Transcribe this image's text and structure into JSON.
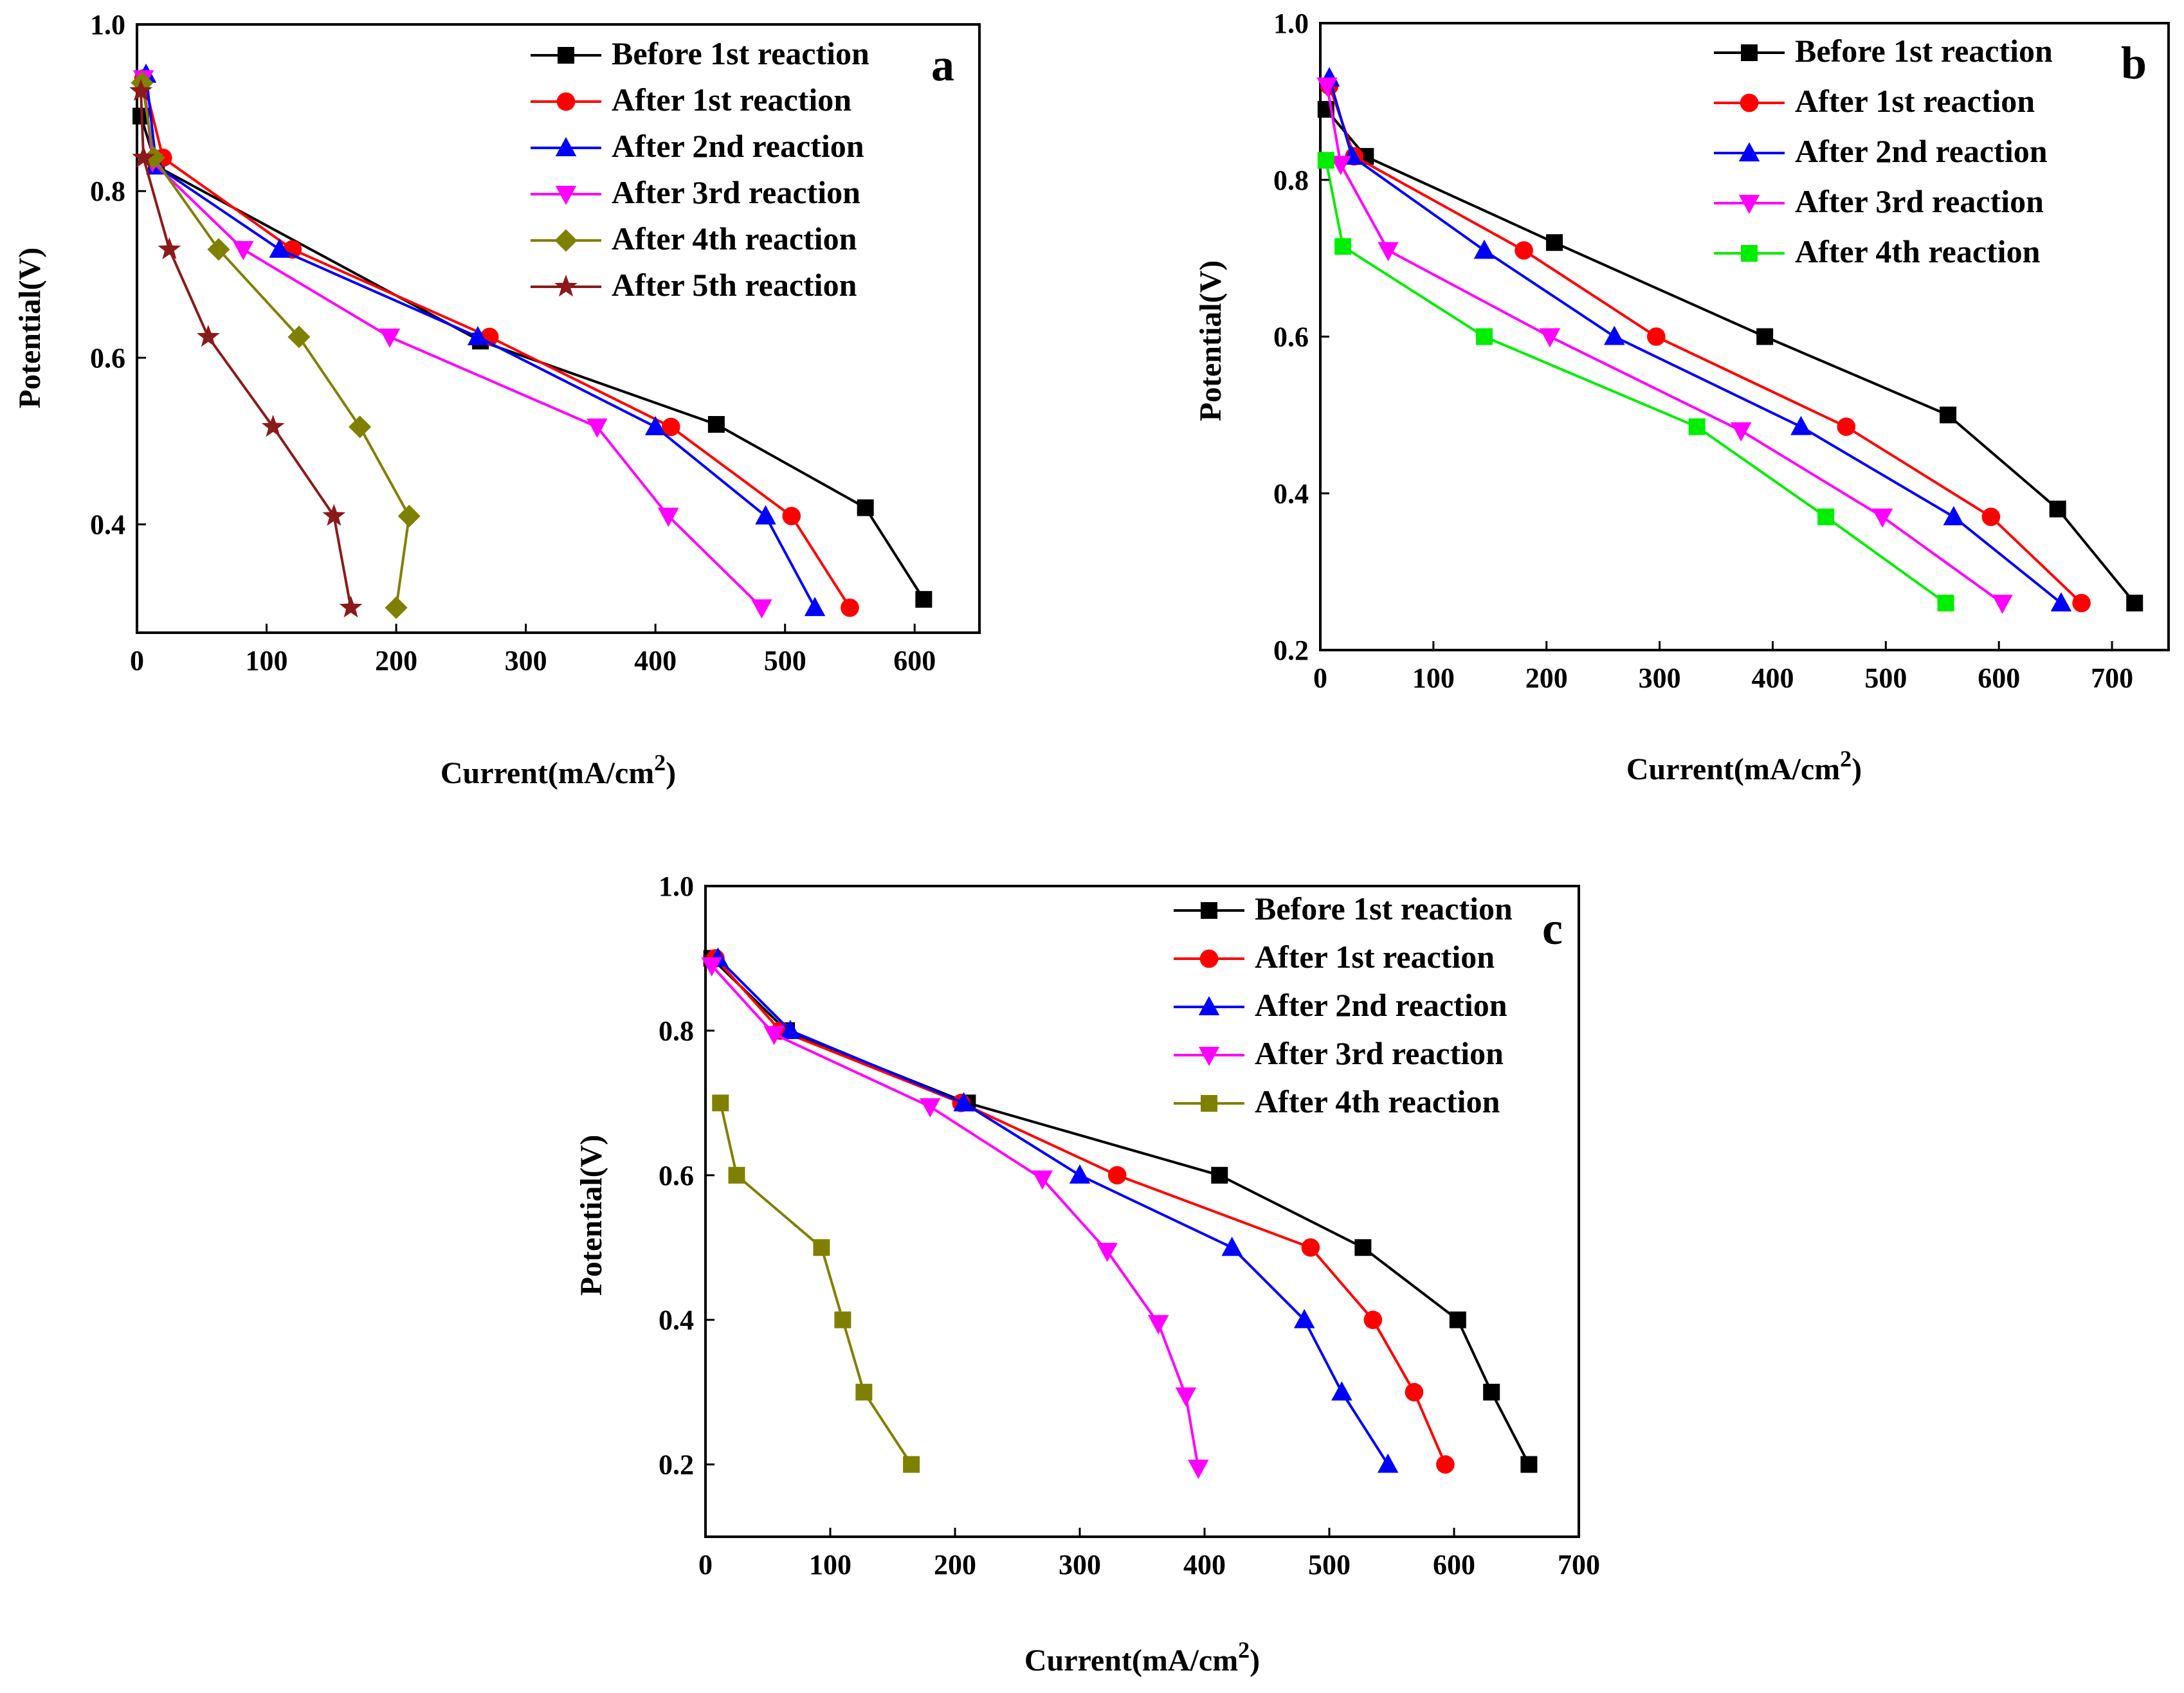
{
  "chart_data": [
    {
      "panel": "a",
      "type": "line",
      "xlabel": "Current(mA/cm",
      "xlabel_sup": "2",
      "xlabel_close": ")",
      "ylabel": "Potential(V)",
      "xlim": [
        0,
        650
      ],
      "ylim": [
        0.27,
        1.0
      ],
      "xticks": [
        0,
        100,
        200,
        300,
        400,
        500,
        600
      ],
      "xtick_labels": [
        "0",
        "100",
        "200",
        "300",
        "400",
        "500",
        "600"
      ],
      "yticks": [
        0.4,
        0.6,
        0.8,
        1.0
      ],
      "ytick_labels": [
        "0.4",
        "0.6",
        "0.8",
        "1.0"
      ],
      "legend_position": "top-right",
      "series": [
        {
          "name": "Before 1st reaction",
          "color": "#000000",
          "marker": "square",
          "x": [
            3,
            15,
            265,
            447,
            562,
            607
          ],
          "y": [
            0.89,
            0.83,
            0.62,
            0.52,
            0.42,
            0.31
          ]
        },
        {
          "name": "After 1st reaction",
          "color": "#ff0000",
          "marker": "circle",
          "x": [
            5,
            20,
            120,
            272,
            412,
            505,
            550
          ],
          "y": [
            0.935,
            0.84,
            0.73,
            0.625,
            0.517,
            0.41,
            0.3
          ]
        },
        {
          "name": "After 2nd reaction",
          "color": "#0000ff",
          "marker": "triangle-up",
          "x": [
            7,
            15,
            110,
            263,
            400,
            485,
            523
          ],
          "y": [
            0.94,
            0.83,
            0.73,
            0.625,
            0.517,
            0.41,
            0.3
          ]
        },
        {
          "name": "After 3rd reaction",
          "color": "#ff00ff",
          "marker": "triangle-down",
          "x": [
            5,
            12,
            82,
            195,
            355,
            410,
            482
          ],
          "y": [
            0.935,
            0.835,
            0.73,
            0.625,
            0.517,
            0.41,
            0.3
          ]
        },
        {
          "name": "After 4th reaction",
          "color": "#808000",
          "marker": "diamond",
          "x": [
            4,
            13,
            63,
            125,
            172,
            210,
            200
          ],
          "y": [
            0.93,
            0.84,
            0.73,
            0.625,
            0.517,
            0.41,
            0.3
          ]
        },
        {
          "name": "After 5th reaction",
          "color": "#8b1a1a",
          "marker": "star",
          "x": [
            3,
            5,
            25,
            55,
            105,
            152,
            165
          ],
          "y": [
            0.92,
            0.84,
            0.73,
            0.625,
            0.517,
            0.41,
            0.3
          ]
        }
      ]
    },
    {
      "panel": "b",
      "type": "line",
      "xlabel": "Current(mA/cm",
      "xlabel_sup": "2",
      "xlabel_close": ")",
      "ylabel": "Potential(V)",
      "xlim": [
        0,
        750
      ],
      "ylim": [
        0.2,
        1.0
      ],
      "xticks": [
        0,
        100,
        200,
        300,
        400,
        500,
        600,
        700
      ],
      "xtick_labels": [
        "0",
        "100",
        "200",
        "300",
        "400",
        "500",
        "600",
        "700"
      ],
      "yticks": [
        0.2,
        0.4,
        0.6,
        0.8,
        1.0
      ],
      "ytick_labels": [
        "0.2",
        "0.4",
        "0.6",
        "0.8",
        "1.0"
      ],
      "legend_position": "top-right",
      "series": [
        {
          "name": "Before 1st reaction",
          "color": "#000000",
          "marker": "square",
          "x": [
            5,
            40,
            207,
            393,
            555,
            652,
            720
          ],
          "y": [
            0.89,
            0.83,
            0.72,
            0.6,
            0.5,
            0.38,
            0.26
          ]
        },
        {
          "name": "After 1st reaction",
          "color": "#ff0000",
          "marker": "circle",
          "x": [
            8,
            30,
            180,
            297,
            465,
            593,
            673
          ],
          "y": [
            0.92,
            0.83,
            0.71,
            0.6,
            0.485,
            0.37,
            0.26
          ]
        },
        {
          "name": "After 2nd reaction",
          "color": "#0000ff",
          "marker": "triangle-up",
          "x": [
            8,
            28,
            145,
            260,
            425,
            560,
            655
          ],
          "y": [
            0.93,
            0.83,
            0.71,
            0.6,
            0.485,
            0.37,
            0.26
          ]
        },
        {
          "name": "After 3rd reaction",
          "color": "#ff00ff",
          "marker": "triangle-down",
          "x": [
            6,
            18,
            60,
            203,
            372,
            497,
            603
          ],
          "y": [
            0.92,
            0.82,
            0.71,
            0.6,
            0.48,
            0.37,
            0.26
          ]
        },
        {
          "name": "After 4th reaction",
          "color": "#00ee00",
          "marker": "square",
          "x": [
            5,
            20,
            145,
            333,
            447,
            553
          ],
          "y": [
            0.825,
            0.715,
            0.6,
            0.485,
            0.37,
            0.26
          ]
        }
      ]
    },
    {
      "panel": "c",
      "type": "line",
      "xlabel": "Current(mA/cm",
      "xlabel_sup": "2",
      "xlabel_close": ")",
      "ylabel": "Potential(V)",
      "xlim": [
        0,
        700
      ],
      "ylim": [
        0.1,
        1.0
      ],
      "xticks": [
        0,
        100,
        200,
        300,
        400,
        500,
        600,
        700
      ],
      "xtick_labels": [
        "0",
        "100",
        "200",
        "300",
        "400",
        "500",
        "600",
        "700"
      ],
      "yticks": [
        0.2,
        0.4,
        0.6,
        0.8,
        1.0
      ],
      "ytick_labels": [
        "0.2",
        "0.4",
        "0.6",
        "0.8",
        "1.0"
      ],
      "legend_position": "top-right",
      "series": [
        {
          "name": "Before 1st reaction",
          "color": "#000000",
          "marker": "square",
          "x": [
            5,
            65,
            210,
            412,
            527,
            603,
            630,
            660
          ],
          "y": [
            0.9,
            0.8,
            0.7,
            0.6,
            0.5,
            0.4,
            0.3,
            0.2
          ]
        },
        {
          "name": "After 1st reaction",
          "color": "#ff0000",
          "marker": "circle",
          "x": [
            8,
            60,
            205,
            330,
            485,
            535,
            568,
            593
          ],
          "y": [
            0.9,
            0.8,
            0.7,
            0.6,
            0.5,
            0.4,
            0.3,
            0.2
          ]
        },
        {
          "name": "After 2nd reaction",
          "color": "#0000ff",
          "marker": "triangle-up",
          "x": [
            10,
            68,
            207,
            300,
            422,
            480,
            510,
            547
          ],
          "y": [
            0.9,
            0.8,
            0.7,
            0.6,
            0.5,
            0.4,
            0.3,
            0.2
          ]
        },
        {
          "name": "After 3rd reaction",
          "color": "#ff00ff",
          "marker": "triangle-down",
          "x": [
            5,
            55,
            180,
            270,
            322,
            363,
            385,
            395
          ],
          "y": [
            0.89,
            0.795,
            0.695,
            0.595,
            0.495,
            0.395,
            0.295,
            0.195
          ]
        },
        {
          "name": "After 4th reaction",
          "color": "#808000",
          "marker": "square",
          "x": [
            12,
            25,
            93,
            110,
            127,
            165
          ],
          "y": [
            0.7,
            0.6,
            0.5,
            0.4,
            0.3,
            0.2
          ]
        }
      ]
    }
  ]
}
